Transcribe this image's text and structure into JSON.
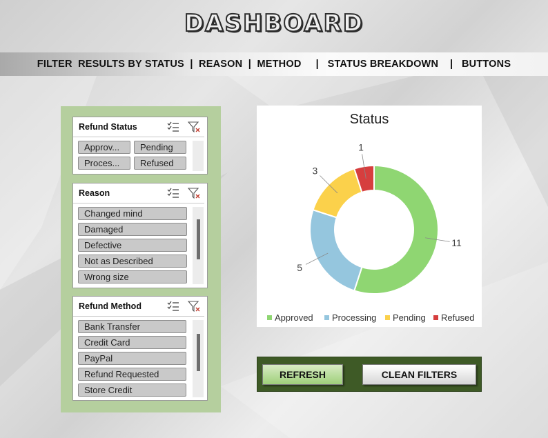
{
  "header": {
    "title": "DASHBOARD",
    "nav_text": "FILTER  RESULTS BY STATUS  |  REASON  |  METHOD     |   STATUS BREAKDOWN    |   BUTTONS"
  },
  "slicers": {
    "status": {
      "title": "Refund Status",
      "items": [
        "Approv...",
        "Pending",
        "Proces...",
        "Refused"
      ]
    },
    "reason": {
      "title": "Reason",
      "items": [
        "Changed mind",
        "Damaged",
        "Defective",
        "Not as Described",
        "Wrong size"
      ]
    },
    "method": {
      "title": "Refund Method",
      "items": [
        "Bank Transfer",
        "Credit Card",
        "PayPal",
        "Refund Requested",
        "Store Credit"
      ]
    },
    "icons": {
      "multi_select": "multi-select-icon",
      "clear_filter": "clear-filter-icon"
    }
  },
  "chart_data": {
    "type": "pie",
    "title": "Status",
    "categories": [
      "Approved",
      "Processing",
      "Pending",
      "Refused"
    ],
    "values": [
      11,
      5,
      3,
      1
    ],
    "colors": [
      "#8fd672",
      "#95c6de",
      "#fbd14b",
      "#d63e3e"
    ],
    "legend": "bottom",
    "hole": true
  },
  "buttons": {
    "refresh": "REFRESH",
    "clean_filters": "CLEAN FILTERS"
  }
}
